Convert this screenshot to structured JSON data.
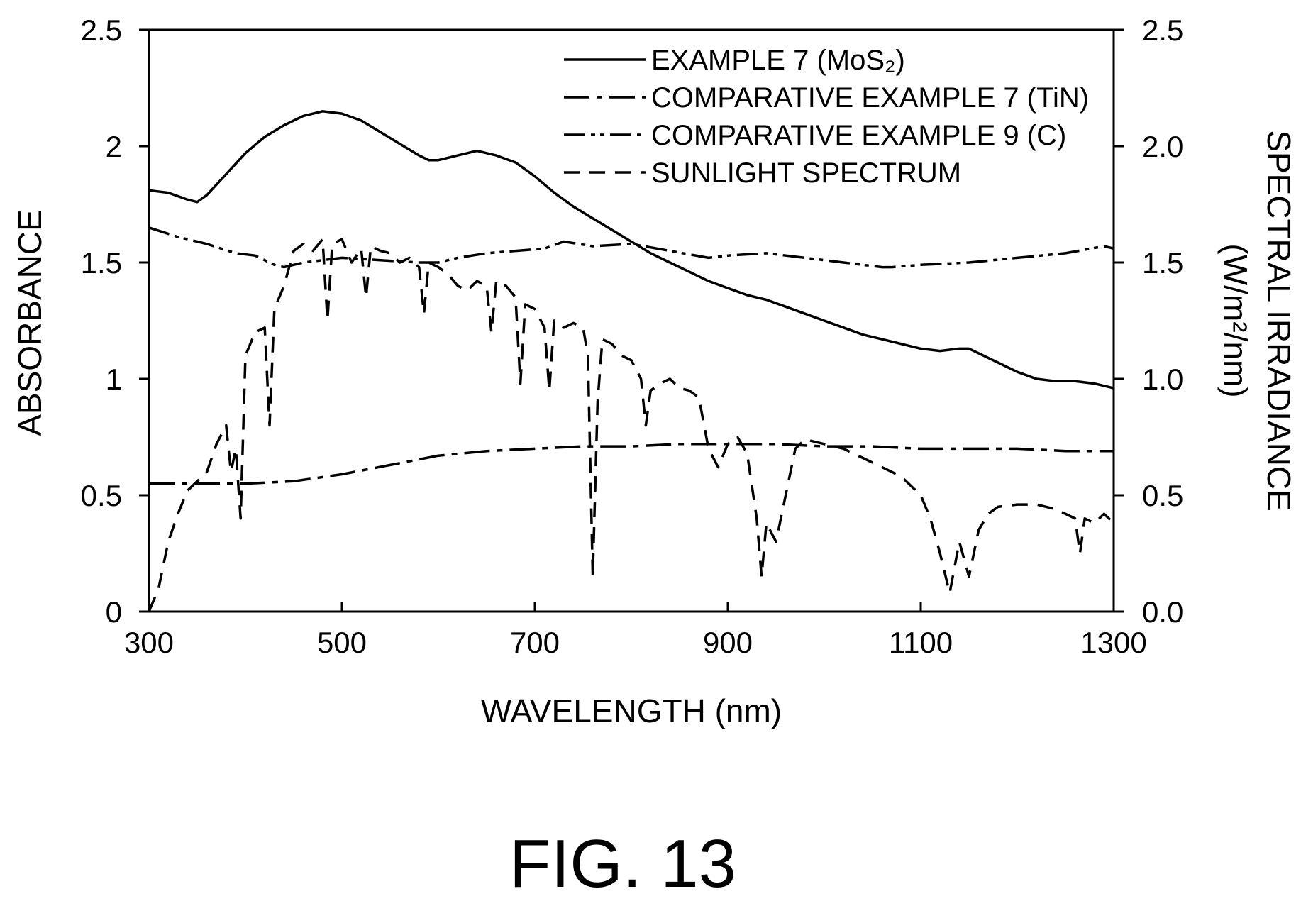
{
  "figure_label": "FIG. 13",
  "chart_data": {
    "type": "line",
    "xlabel": "WAVELENGTH (nm)",
    "ylabel_left": "ABSORBANCE",
    "ylabel_right_line1": "SPECTRAL IRRADIANCE",
    "ylabel_right_line2": "(W/m²/nm)",
    "xlim": [
      300,
      1300
    ],
    "ylim_left": [
      0,
      2.5
    ],
    "ylim_right": [
      0,
      2.5
    ],
    "x_ticks": [
      300,
      500,
      700,
      900,
      1100,
      1300
    ],
    "x_tick_labels": [
      "300",
      "500",
      "700",
      "900",
      "1100",
      "1300"
    ],
    "y_left_ticks": [
      0,
      0.5,
      1,
      1.5,
      2,
      2.5
    ],
    "y_left_tick_labels": [
      "0",
      "0.5",
      "1",
      "1.5",
      "2",
      "2.5"
    ],
    "y_right_ticks": [
      0,
      0.5,
      1,
      1.5,
      2,
      2.5
    ],
    "y_right_tick_labels": [
      "0.0",
      "0.5",
      "1.0",
      "1.5",
      "2.0",
      "2.5"
    ],
    "grid": false,
    "legend_position": "top-right",
    "legend": [
      {
        "label": "EXAMPLE 7 (MoS₂)",
        "dash": "solid"
      },
      {
        "label": "COMPARATIVE EXAMPLE 7 (TiN)",
        "dash": "dash-dot"
      },
      {
        "label": "COMPARATIVE EXAMPLE 9 (C)",
        "dash": "dash-dot-dot"
      },
      {
        "label": "SUNLIGHT SPECTRUM",
        "dash": "dashed"
      }
    ],
    "series": [
      {
        "name": "EXAMPLE 7 (MoS₂)",
        "axis": "left",
        "dash": "solid",
        "x": [
          300,
          320,
          340,
          350,
          360,
          380,
          400,
          420,
          440,
          460,
          480,
          500,
          520,
          540,
          560,
          580,
          590,
          600,
          620,
          640,
          660,
          680,
          700,
          720,
          740,
          760,
          780,
          800,
          820,
          840,
          860,
          880,
          900,
          920,
          940,
          960,
          980,
          1000,
          1020,
          1040,
          1060,
          1080,
          1100,
          1120,
          1140,
          1150,
          1160,
          1180,
          1200,
          1220,
          1240,
          1260,
          1280,
          1300
        ],
        "y": [
          1.81,
          1.8,
          1.77,
          1.76,
          1.79,
          1.88,
          1.97,
          2.04,
          2.09,
          2.13,
          2.15,
          2.14,
          2.11,
          2.06,
          2.01,
          1.96,
          1.94,
          1.94,
          1.96,
          1.98,
          1.96,
          1.93,
          1.87,
          1.8,
          1.74,
          1.69,
          1.64,
          1.59,
          1.54,
          1.5,
          1.46,
          1.42,
          1.39,
          1.36,
          1.34,
          1.31,
          1.28,
          1.25,
          1.22,
          1.19,
          1.17,
          1.15,
          1.13,
          1.12,
          1.13,
          1.13,
          1.11,
          1.07,
          1.03,
          1.0,
          0.99,
          0.99,
          0.98,
          0.96
        ]
      },
      {
        "name": "COMPARATIVE EXAMPLE 7 (TiN)",
        "axis": "left",
        "dash": "dash-dot",
        "x": [
          300,
          350,
          400,
          450,
          500,
          550,
          600,
          650,
          700,
          750,
          800,
          850,
          900,
          950,
          1000,
          1050,
          1100,
          1150,
          1200,
          1250,
          1300
        ],
        "y": [
          0.55,
          0.55,
          0.55,
          0.56,
          0.59,
          0.63,
          0.67,
          0.69,
          0.7,
          0.71,
          0.71,
          0.72,
          0.72,
          0.72,
          0.71,
          0.71,
          0.7,
          0.7,
          0.7,
          0.69,
          0.69
        ]
      },
      {
        "name": "COMPARATIVE EXAMPLE 9 (C)",
        "axis": "left",
        "dash": "dash-dot-dot",
        "x": [
          300,
          330,
          360,
          390,
          410,
          430,
          440,
          460,
          500,
          540,
          580,
          600,
          620,
          650,
          680,
          710,
          730,
          760,
          800,
          840,
          880,
          900,
          940,
          980,
          1020,
          1060,
          1070,
          1100,
          1150,
          1200,
          1250,
          1290,
          1300
        ],
        "y": [
          1.65,
          1.61,
          1.58,
          1.54,
          1.53,
          1.49,
          1.48,
          1.5,
          1.52,
          1.51,
          1.5,
          1.5,
          1.52,
          1.54,
          1.55,
          1.56,
          1.59,
          1.57,
          1.58,
          1.55,
          1.52,
          1.53,
          1.54,
          1.52,
          1.5,
          1.48,
          1.48,
          1.49,
          1.5,
          1.52,
          1.54,
          1.57,
          1.56
        ]
      },
      {
        "name": "SUNLIGHT SPECTRUM",
        "axis": "right",
        "dash": "dashed",
        "x": [
          300,
          310,
          320,
          330,
          340,
          350,
          360,
          370,
          380,
          385,
          390,
          395,
          400,
          410,
          420,
          425,
          430,
          440,
          450,
          460,
          470,
          480,
          485,
          490,
          500,
          510,
          520,
          525,
          530,
          540,
          550,
          560,
          570,
          580,
          585,
          590,
          600,
          610,
          620,
          630,
          640,
          650,
          655,
          660,
          670,
          680,
          685,
          690,
          700,
          710,
          715,
          720,
          730,
          740,
          750,
          755,
          760,
          765,
          770,
          780,
          790,
          800,
          810,
          815,
          820,
          830,
          840,
          850,
          860,
          870,
          880,
          890,
          900,
          910,
          920,
          930,
          935,
          940,
          950,
          960,
          970,
          980,
          1000,
          1020,
          1040,
          1060,
          1080,
          1100,
          1110,
          1120,
          1130,
          1140,
          1150,
          1160,
          1170,
          1180,
          1200,
          1220,
          1240,
          1260,
          1265,
          1270,
          1280,
          1290,
          1300
        ],
        "y": [
          0.0,
          0.1,
          0.3,
          0.42,
          0.52,
          0.56,
          0.6,
          0.72,
          0.8,
          0.6,
          0.7,
          0.4,
          1.1,
          1.2,
          1.22,
          0.8,
          1.3,
          1.4,
          1.55,
          1.58,
          1.55,
          1.6,
          1.25,
          1.58,
          1.6,
          1.5,
          1.56,
          1.35,
          1.57,
          1.55,
          1.54,
          1.5,
          1.52,
          1.48,
          1.28,
          1.5,
          1.48,
          1.45,
          1.4,
          1.38,
          1.42,
          1.4,
          1.2,
          1.42,
          1.4,
          1.35,
          0.98,
          1.32,
          1.3,
          1.22,
          0.95,
          1.25,
          1.22,
          1.24,
          1.22,
          1.1,
          0.15,
          0.9,
          1.17,
          1.15,
          1.1,
          1.08,
          1.0,
          0.8,
          0.95,
          0.98,
          1.0,
          0.96,
          0.95,
          0.92,
          0.7,
          0.62,
          0.72,
          0.75,
          0.68,
          0.4,
          0.15,
          0.38,
          0.3,
          0.5,
          0.7,
          0.74,
          0.72,
          0.7,
          0.66,
          0.62,
          0.58,
          0.5,
          0.4,
          0.25,
          0.08,
          0.3,
          0.15,
          0.35,
          0.42,
          0.45,
          0.46,
          0.46,
          0.44,
          0.4,
          0.25,
          0.4,
          0.38,
          0.42,
          0.38
        ]
      }
    ]
  }
}
